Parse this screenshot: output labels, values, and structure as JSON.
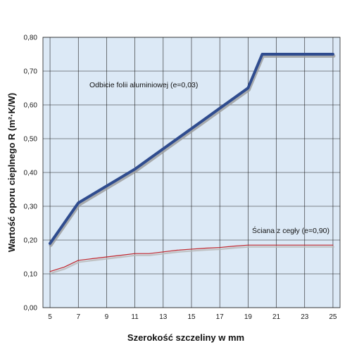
{
  "chart_data": {
    "type": "line",
    "title": "",
    "xlabel": "Szerokość szczeliny w mm",
    "ylabel": "Wartość oporu cieplnego R (m²·K/W)",
    "xlim": [
      4.5,
      25.5
    ],
    "ylim": [
      0,
      0.8
    ],
    "x_ticks": [
      5,
      7,
      9,
      11,
      13,
      15,
      17,
      19,
      21,
      23,
      25
    ],
    "y_ticks": [
      0,
      0.1,
      0.2,
      0.3,
      0.4,
      0.5,
      0.6,
      0.7,
      0.8
    ],
    "y_tick_labels": [
      "0,00",
      "0,10",
      "0,20",
      "0,30",
      "0,40",
      "0,50",
      "0,60",
      "0,70",
      "0,80"
    ],
    "grid": {
      "horizontal": true,
      "vertical": true
    },
    "background_color": "#dce9f6",
    "grid_color": "#1f1f1f",
    "series": [
      {
        "name": "Odbicie folii aluminiowej (e=0,03)",
        "color": "#2f4c8f",
        "shadow_color": "#9a9a9a",
        "x": [
          5,
          6,
          7,
          8,
          9,
          10,
          11,
          12,
          13,
          14,
          15,
          16,
          17,
          18,
          19,
          20,
          21,
          22,
          23,
          24,
          25
        ],
        "y": [
          0.19,
          0.25,
          0.31,
          0.335,
          0.36,
          0.385,
          0.41,
          0.44,
          0.47,
          0.5,
          0.53,
          0.56,
          0.59,
          0.62,
          0.65,
          0.75,
          0.75,
          0.75,
          0.75,
          0.75,
          0.75
        ]
      },
      {
        "name": "Ściana z cegły (e=0,90)",
        "color": "#c0252b",
        "shadow_color": "#b8b8b8",
        "x": [
          5,
          6,
          7,
          8,
          9,
          10,
          11,
          12,
          13,
          14,
          15,
          16,
          17,
          18,
          19,
          20,
          21,
          22,
          23,
          24,
          25
        ],
        "y": [
          0.107,
          0.12,
          0.14,
          0.145,
          0.15,
          0.155,
          0.16,
          0.16,
          0.165,
          0.17,
          0.173,
          0.176,
          0.178,
          0.182,
          0.185,
          0.185,
          0.185,
          0.185,
          0.185,
          0.185,
          0.185
        ]
      }
    ]
  }
}
